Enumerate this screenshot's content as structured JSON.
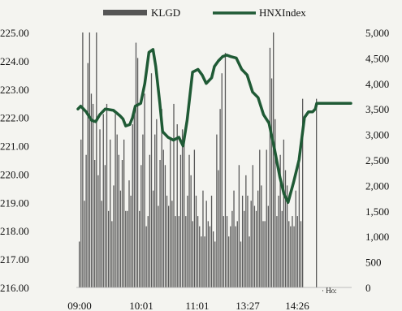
{
  "chart_data": {
    "type": "bar+line",
    "legend": {
      "position": "top-center",
      "items": [
        {
          "label": "KLGD",
          "color": "#555555",
          "kind": "bar"
        },
        {
          "label": "HNXIndex",
          "color": "#1f5a35",
          "kind": "line"
        }
      ]
    },
    "x_ticks": [
      "09:00",
      "10:01",
      "11:01",
      "13:27",
      "14:26"
    ],
    "y_left": {
      "min": 216.0,
      "max": 225.0,
      "ticks": [
        "216.00",
        "217.00",
        "218.00",
        "219.00",
        "220.00",
        "221.00",
        "222.00",
        "223.00",
        "224.00",
        "225.00"
      ]
    },
    "y_right": {
      "min": 0,
      "max": 5000,
      "ticks": [
        "0",
        "500",
        "1,000",
        "1,500",
        "2,000",
        "2,500",
        "3,000",
        "3,500",
        "4,000",
        "4,500",
        "5,000"
      ]
    },
    "bottom_right_note": "· Ho:",
    "series": [
      {
        "name": "KLGD",
        "axis": "right",
        "color": "#5a5a5a",
        "values": [
          900,
          2900,
          5000,
          1700,
          2600,
          4400,
          5000,
          3800,
          3600,
          2500,
          5000,
          2200,
          3100,
          1700,
          3400,
          2400,
          3600,
          1500,
          2900,
          1300,
          2000,
          3400,
          3000,
          2600,
          1900,
          2500,
          2900,
          1500,
          1500,
          2100,
          1800,
          3200,
          3500,
          4800,
          4500,
          1500,
          2400,
          3000,
          3800,
          1200,
          1400,
          2600,
          4200,
          1900,
          3000,
          3300,
          1600,
          2500,
          3500,
          2700,
          2400,
          1800,
          1600,
          2900,
          1700,
          3600,
          1400,
          3200,
          1400,
          2600,
          3100,
          2800,
          1400,
          1800,
          2600,
          2200,
          1300,
          2700,
          1800,
          1400,
          1200,
          1000,
          1900,
          1000,
          1700,
          1300,
          1200,
          1800,
          1100,
          900,
          3000,
          2300,
          3500,
          4200,
          1400,
          4600,
          1400,
          1000,
          1200,
          1500,
          1900,
          1200,
          1300,
          2400,
          900,
          1800,
          1500,
          2200,
          1800,
          1000,
          1700,
          2400,
          1600,
          1500,
          1900,
          2700,
          2000,
          1300,
          1300,
          2700,
          1600,
          4700,
          4100,
          5000,
          3300,
          1400,
          1800,
          2600,
          1500,
          2900,
          2300,
          2000,
          1300,
          1200,
          1400,
          1200,
          1900,
          1400,
          2500,
          1300,
          3700
        ]
      },
      {
        "name": "HNXIndex",
        "axis": "left",
        "color": "#1f5a35",
        "x": [
          0,
          0.01,
          0.03,
          0.05,
          0.065,
          0.08,
          0.1,
          0.13,
          0.155,
          0.165,
          0.175,
          0.19,
          0.2,
          0.21,
          0.23,
          0.245,
          0.26,
          0.275,
          0.285,
          0.3,
          0.31,
          0.33,
          0.35,
          0.37,
          0.385,
          0.4,
          0.42,
          0.44,
          0.455,
          0.47,
          0.49,
          0.5,
          0.515,
          0.53,
          0.545,
          0.56,
          0.58,
          0.6,
          0.62,
          0.64,
          0.66,
          0.68,
          0.7,
          0.72,
          0.74,
          0.755,
          0.77,
          0.79,
          0.81,
          0.83,
          0.845,
          0.86,
          0.87,
          0.875,
          0.88,
          0.89,
          0.9,
          0.92,
          0.95,
          1.0
        ],
        "values": [
          222.3,
          222.4,
          222.2,
          221.9,
          221.85,
          222.1,
          222.3,
          222.25,
          222.05,
          221.95,
          221.7,
          221.75,
          222.0,
          222.4,
          222.5,
          223.2,
          224.3,
          224.4,
          223.8,
          222.5,
          221.5,
          221.3,
          221.2,
          221.3,
          221.0,
          221.9,
          223.6,
          223.7,
          223.5,
          223.2,
          223.4,
          223.8,
          224.0,
          224.15,
          224.2,
          224.15,
          224.1,
          223.7,
          223.5,
          222.9,
          222.7,
          222.1,
          221.8,
          220.9,
          219.9,
          219.3,
          219.0,
          219.7,
          220.5,
          222.0,
          222.2,
          222.2,
          222.3,
          222.5,
          222.5,
          222.5,
          222.5,
          222.5,
          222.5,
          222.5
        ]
      }
    ]
  }
}
